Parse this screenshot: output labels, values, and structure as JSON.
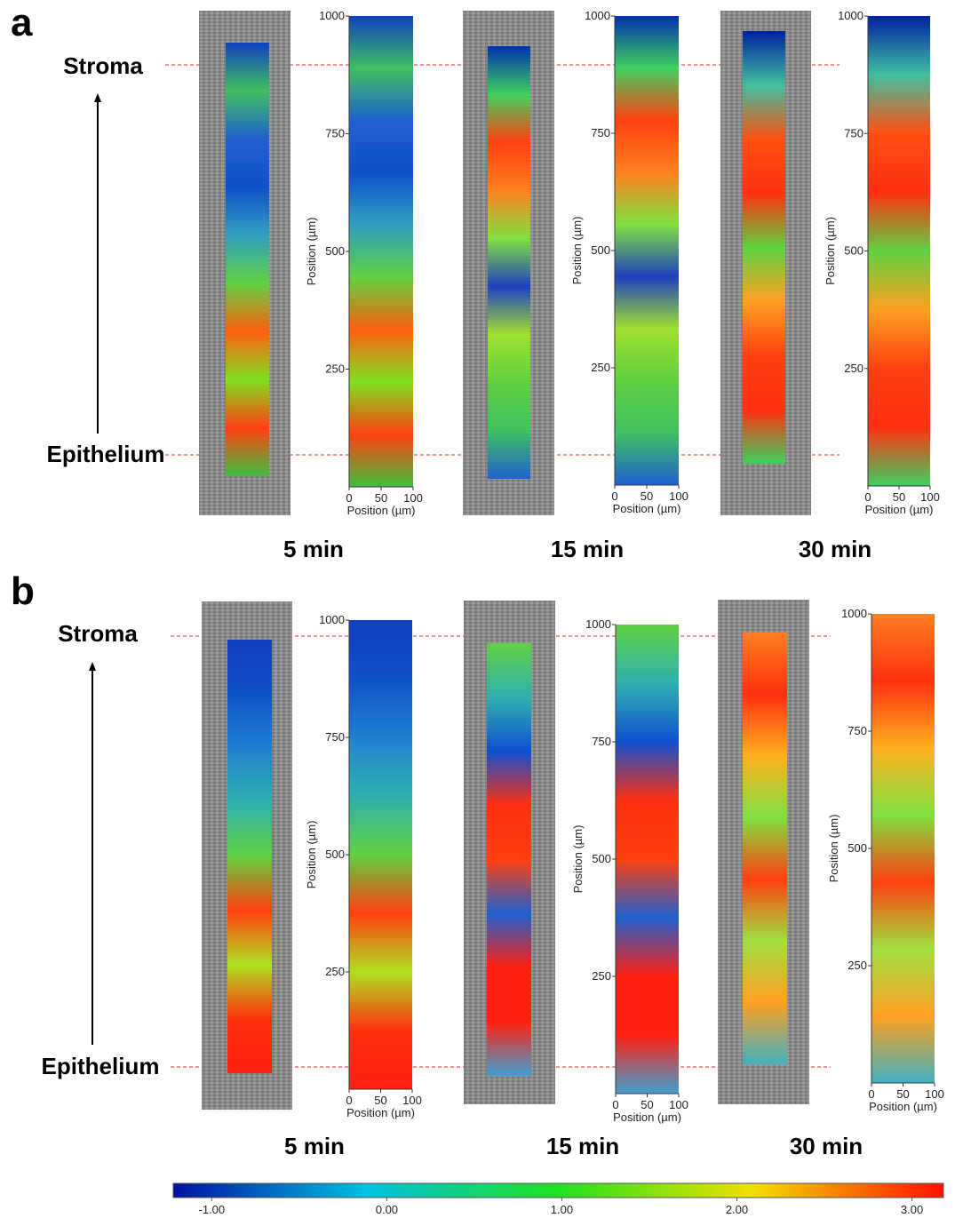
{
  "panels": [
    {
      "label": "a",
      "stroma": "Stroma",
      "epithelium": "Epithelium",
      "maps": [
        {
          "time": "5 min",
          "ylabel": "Position (µm)",
          "xlabel": "Position (µm)",
          "ylim": [
            0,
            1000
          ],
          "xlim": [
            0,
            100
          ],
          "yticks": [
            1000,
            750,
            500,
            250
          ],
          "xticks": [
            0,
            50,
            100
          ]
        },
        {
          "time": "15 min",
          "ylabel": "Position (µm)",
          "xlabel": "Position (µm)",
          "ylim": [
            0,
            1000
          ],
          "xlim": [
            0,
            100
          ],
          "yticks": [
            1000,
            750,
            500,
            250
          ],
          "xticks": [
            0,
            50,
            100
          ]
        },
        {
          "time": "30 min",
          "ylabel": "Position (µm)",
          "xlabel": "Position (µm)",
          "ylim": [
            0,
            1000
          ],
          "xlim": [
            0,
            100
          ],
          "yticks": [
            1000,
            750,
            500,
            250
          ],
          "xticks": [
            0,
            50,
            100
          ]
        }
      ]
    },
    {
      "label": "b",
      "stroma": "Stroma",
      "epithelium": "Epithelium",
      "maps": [
        {
          "time": "5 min",
          "ylabel": "Position (µm)",
          "xlabel": "Position (µm)",
          "ylim": [
            0,
            1000
          ],
          "xlim": [
            0,
            100
          ],
          "yticks": [
            1000,
            750,
            500,
            250
          ],
          "xticks": [
            0,
            50,
            100
          ]
        },
        {
          "time": "15 min",
          "ylabel": "Position (µm)",
          "xlabel": "Position (µm)",
          "ylim": [
            0,
            1000
          ],
          "xlim": [
            0,
            100
          ],
          "yticks": [
            1000,
            750,
            500,
            250
          ],
          "xticks": [
            0,
            50,
            100
          ]
        },
        {
          "time": "30 min",
          "ylabel": "Position (µm)",
          "xlabel": "Position (µm)",
          "ylim": [
            0,
            1000
          ],
          "xlim": [
            0,
            100
          ],
          "yticks": [
            1000,
            750,
            500,
            250
          ],
          "xticks": [
            0,
            50,
            100
          ]
        }
      ]
    }
  ],
  "colorbar": {
    "lim": [
      -1.22,
      3.18
    ],
    "ticks": [
      {
        "value": -1,
        "label": "-1.00"
      },
      {
        "value": 0,
        "label": "0.00"
      },
      {
        "value": 1,
        "label": "1.00"
      },
      {
        "value": 2,
        "label": "2.00"
      },
      {
        "value": 3,
        "label": "3.00"
      }
    ]
  }
}
